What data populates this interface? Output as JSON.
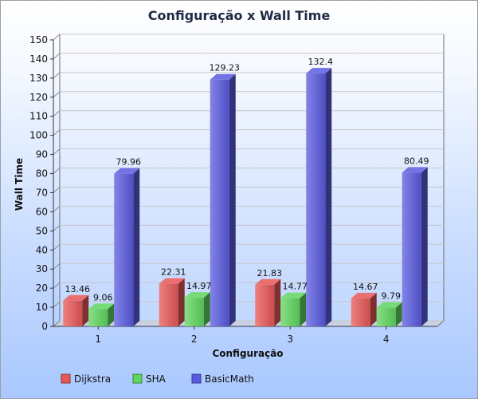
{
  "chart_data": {
    "type": "bar",
    "title": "Configuração x Wall Time",
    "xlabel": "Configuração",
    "ylabel": "Wall Time",
    "categories": [
      "1",
      "2",
      "3",
      "4"
    ],
    "series": [
      {
        "name": "Dijkstra",
        "color": "#e85656",
        "values": [
          13.46,
          22.31,
          21.83,
          14.67
        ],
        "labels": [
          "13.46",
          "22.31",
          "21.83",
          "14.67"
        ]
      },
      {
        "name": "SHA",
        "color": "#5fd65f",
        "values": [
          9.06,
          14.97,
          14.77,
          9.79
        ],
        "labels": [
          "9.06",
          "14.97",
          "14.77",
          "9.79"
        ]
      },
      {
        "name": "BasicMath",
        "color": "#5a5ae0",
        "values": [
          79.96,
          129.23,
          132.4,
          80.49
        ],
        "labels": [
          "79.96",
          "129.23",
          "132.4",
          "80.49"
        ]
      }
    ],
    "ylim": [
      0,
      150
    ],
    "yticks": [
      "0",
      "10",
      "20",
      "30",
      "40",
      "50",
      "60",
      "70",
      "80",
      "90",
      "100",
      "110",
      "120",
      "130",
      "140",
      "150"
    ],
    "grid": true,
    "legend_position": "bottom-left"
  }
}
